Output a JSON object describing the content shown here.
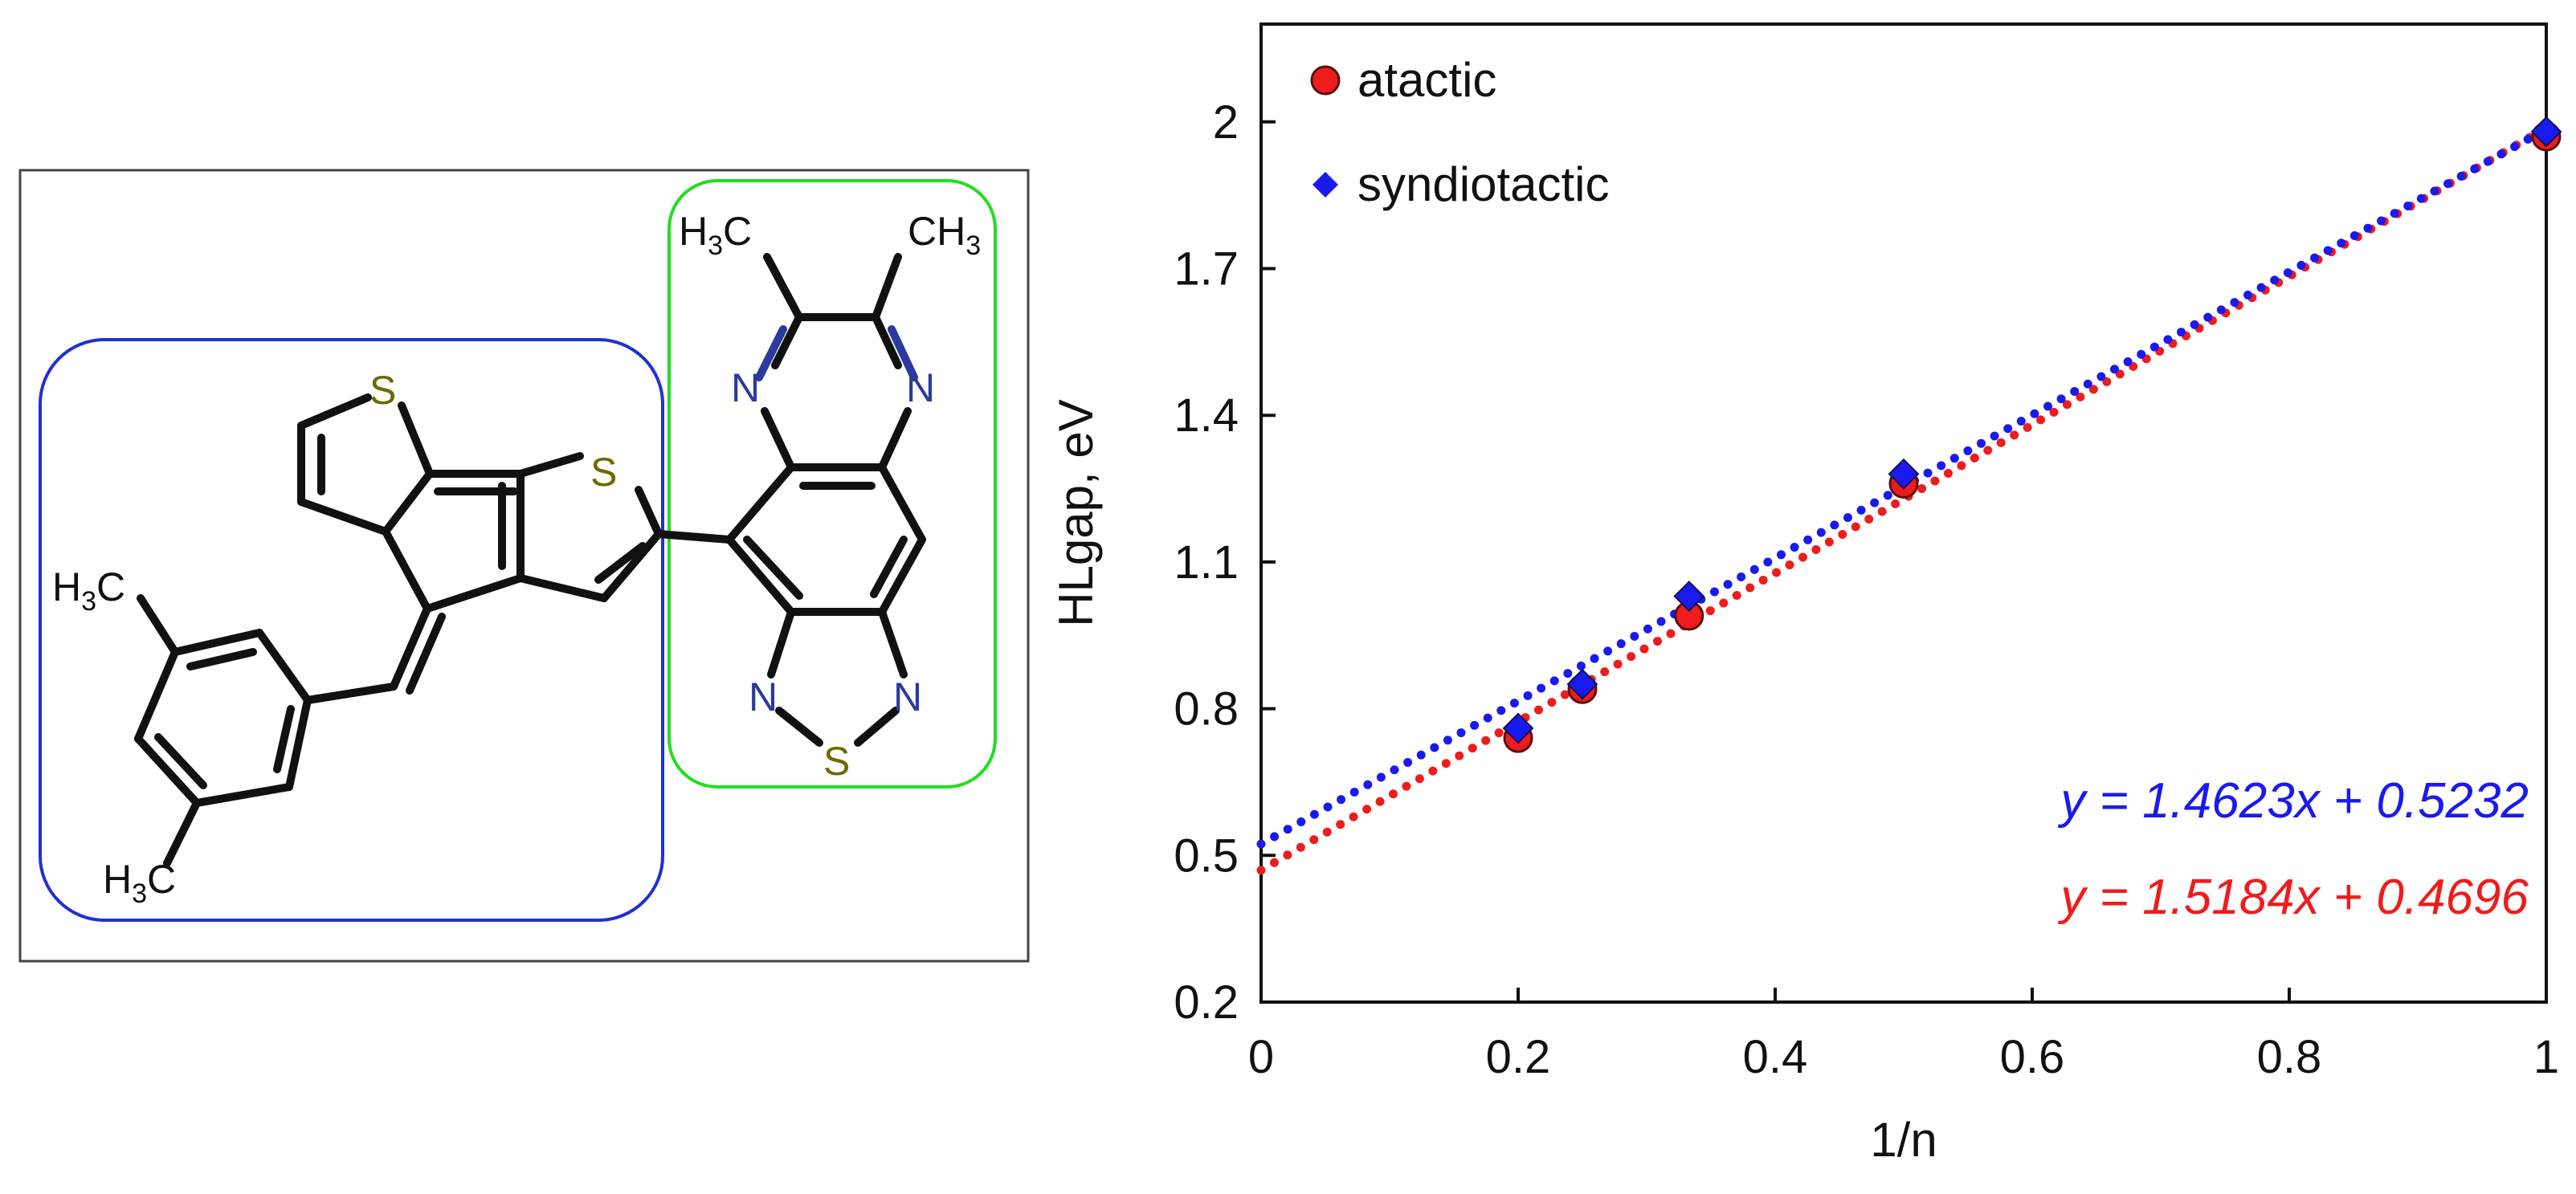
{
  "molecule": {
    "atoms": {
      "s_thiophene_1": "S",
      "s_thiophene_2": "S",
      "s_thiadiazole": "S",
      "n_top_left": "N",
      "n_top_right": "N",
      "n_thiadiazole_left": "N",
      "n_thiadiazole_right": "N"
    },
    "methyl_groups": {
      "top_left": {
        "main": "H",
        "sub": "3",
        "tail": "C"
      },
      "top_right": {
        "main": "CH",
        "sub": "3"
      },
      "aryl_upper": {
        "main": "H",
        "sub": "3",
        "tail": "C"
      },
      "aryl_lower": {
        "main": "H",
        "sub": "3",
        "tail": "C"
      }
    },
    "colors": {
      "box_donor": "#1f2fd6",
      "box_acceptor": "#22dd22",
      "frame": "#444444",
      "bond": "#111111",
      "sulfur": "#6b6b00",
      "nitrogen": "#2b3a9e"
    }
  },
  "chart_data": {
    "type": "scatter",
    "xlabel": "1/n",
    "ylabel": "HLgap, eV",
    "xlim": [
      0,
      1
    ],
    "ylim": [
      0.2,
      2.2
    ],
    "xticks": [
      0,
      0.2,
      0.4,
      0.6,
      0.8,
      1
    ],
    "xtick_labels": [
      "0",
      "0.2",
      "0.4",
      "0.6",
      "0.8",
      "1"
    ],
    "yticks": [
      0.2,
      0.5,
      0.8,
      1.1,
      1.4,
      1.7,
      2.0
    ],
    "ytick_labels": [
      "0.2",
      "0.5",
      "0.8",
      "1.1",
      "1.4",
      "1.7",
      "2"
    ],
    "grid": false,
    "legend_position": "top-left",
    "series": [
      {
        "name": "atactic",
        "marker": "circle",
        "color": "#ee1c1c",
        "x": [
          0.2,
          0.25,
          0.333,
          0.5,
          1.0
        ],
        "y": [
          0.74,
          0.84,
          0.99,
          1.26,
          1.97
        ],
        "fit": {
          "slope": 1.5184,
          "intercept": 0.4696,
          "label": "y = 1.5184x + 0.4696"
        }
      },
      {
        "name": "syndiotactic",
        "marker": "diamond",
        "color": "#1a1aee",
        "x": [
          0.2,
          0.25,
          0.333,
          0.5,
          1.0
        ],
        "y": [
          0.76,
          0.85,
          1.03,
          1.28,
          1.98
        ],
        "fit": {
          "slope": 1.4623,
          "intercept": 0.5232,
          "label": "y = 1.4623x + 0.5232"
        }
      }
    ]
  }
}
